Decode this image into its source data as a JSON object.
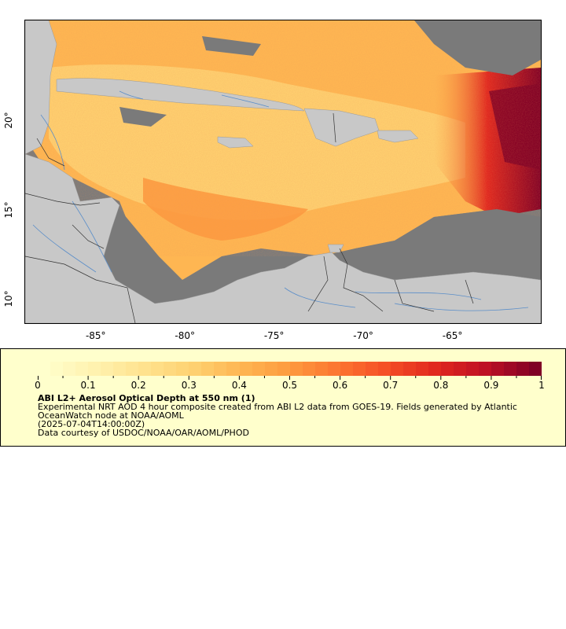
{
  "map": {
    "lon_ticks": [
      {
        "value": -85,
        "label": "-85°"
      },
      {
        "value": -80,
        "label": "-80°"
      },
      {
        "value": -75,
        "label": "-75°"
      },
      {
        "value": -70,
        "label": "-70°"
      },
      {
        "value": -65,
        "label": "-65°"
      }
    ],
    "lat_ticks": [
      {
        "value": 20,
        "label": "20°"
      },
      {
        "value": 15,
        "label": "15°"
      },
      {
        "value": 10,
        "label": "10°"
      }
    ],
    "lon_range": [
      -89,
      -60
    ],
    "lat_range": [
      8,
      25
    ],
    "colors": {
      "no_data": "#7a7a7a",
      "land": "#c8c8c8",
      "rivers": "#5b8ec9",
      "borders": "#000000"
    }
  },
  "legend": {
    "tick_labels": [
      "0",
      "0.1",
      "0.2",
      "0.3",
      "0.4",
      "0.5",
      "0.6",
      "0.7",
      "0.8",
      "0.9",
      "1"
    ],
    "range": [
      0,
      1
    ],
    "colors": [
      "#ffffcc",
      "#fff2b0",
      "#ffe38f",
      "#fed272",
      "#feb652",
      "#fd9a3f",
      "#fc7430",
      "#f44d25",
      "#e0271f",
      "#bd0f24",
      "#800026"
    ],
    "title": "ABI L2+ Aerosol Optical Depth at 550 nm (1)",
    "description": "Experimental NRT AOD 4 hour composite created from ABI L2 data from GOES-19. Fields generated by Atlantic OceanWatch node at NOAA/AOML",
    "timestamp": "(2025-07-04T14:00:00Z)",
    "credit": "Data courtesy of USDOC/NOAA/OAR/AOML/PHOD"
  }
}
